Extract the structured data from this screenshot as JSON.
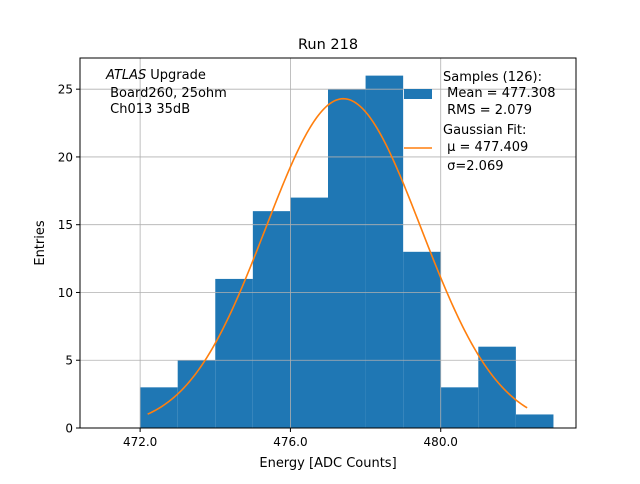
{
  "chart_data": {
    "type": "bar",
    "title": "Run 218",
    "xlabel": "Energy [ADC Counts]",
    "ylabel": "Entries",
    "xlim": [
      470.4,
      483.6
    ],
    "ylim": [
      0,
      27.3
    ],
    "grid": true,
    "x_ticks": [
      472,
      476,
      480
    ],
    "x_tick_labels": [
      "472.0",
      "476.0",
      "480.0"
    ],
    "y_ticks": [
      0,
      5,
      10,
      15,
      20,
      25
    ],
    "y_tick_labels": [
      "0",
      "5",
      "10",
      "15",
      "20",
      "25"
    ],
    "bin_edges": [
      472,
      473,
      474,
      475,
      476,
      477,
      478,
      479,
      480,
      481,
      482,
      483
    ],
    "values": [
      3,
      5,
      11,
      16,
      17,
      25,
      26,
      13,
      3,
      6,
      1
    ],
    "fit": {
      "type": "gaussian",
      "mu": 477.409,
      "sigma": 2.069,
      "count": 126,
      "range": [
        472.2,
        482.3
      ]
    },
    "colors": {
      "bars": "#1f77b4",
      "fit": "#ff7f0e",
      "grid": "#b0b0b0"
    },
    "annotation": [
      "Upgrade",
      " Board260, 25ohm",
      " Ch013 35dB"
    ],
    "annotation_italic": "ATLAS",
    "legend": {
      "placement": "top-right",
      "hist_lines": [
        "Samples (126):",
        " Mean = 477.308",
        " RMS = 2.079"
      ],
      "fit_lines": [
        "Gaussian Fit:",
        " μ = 477.409",
        " σ=2.069"
      ]
    }
  }
}
